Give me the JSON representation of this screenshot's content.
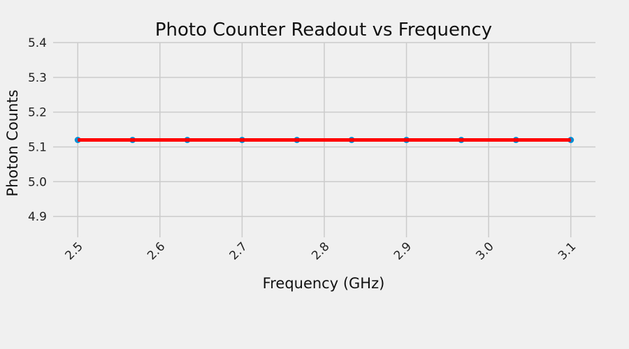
{
  "chart_data": {
    "type": "line",
    "title": "Photo Counter Readout vs Frequency",
    "xlabel": "Frequency (GHz)",
    "ylabel": "Photon Counts",
    "xlim": [
      2.47,
      3.13
    ],
    "ylim": [
      4.84,
      5.4
    ],
    "xticks": [
      2.5,
      2.6,
      2.7,
      2.8,
      2.9,
      3.0,
      3.1
    ],
    "xtick_labels": [
      "2.5",
      "2.6",
      "2.7",
      "2.8",
      "2.9",
      "3.0",
      "3.1"
    ],
    "yticks": [
      4.9,
      5.0,
      5.1,
      5.2,
      5.3,
      5.4
    ],
    "ytick_labels": [
      "4.9",
      "5.0",
      "5.1",
      "5.2",
      "5.3",
      "5.4"
    ],
    "grid": true,
    "series": [
      {
        "kind": "scatter",
        "color": "#008fd5",
        "x": [
          2.5,
          2.5667,
          2.6333,
          2.7,
          2.7667,
          2.8333,
          2.9,
          2.9667,
          3.0333,
          3.1
        ],
        "y": [
          5.12,
          5.12,
          5.12,
          5.12,
          5.12,
          5.12,
          5.12,
          5.12,
          5.12,
          5.12
        ]
      },
      {
        "kind": "line",
        "color": "#ff0000",
        "x": [
          2.5,
          3.1
        ],
        "y": [
          5.12,
          5.12
        ]
      }
    ]
  }
}
